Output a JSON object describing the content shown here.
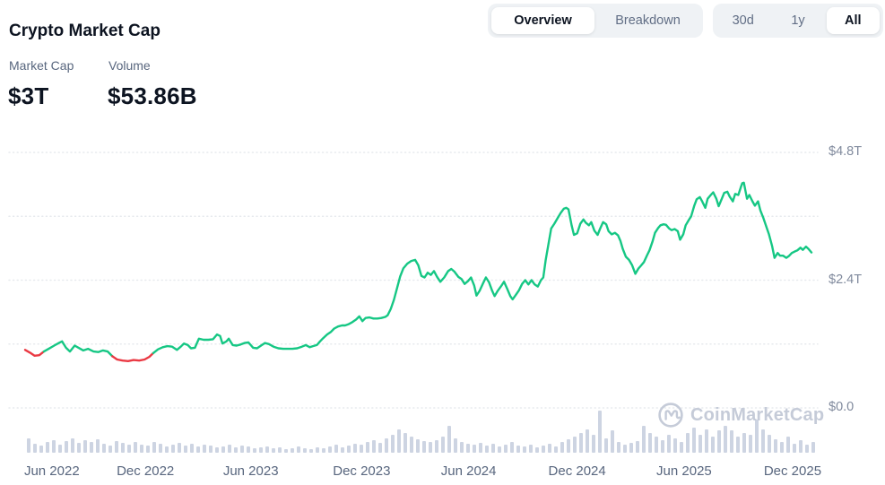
{
  "header": {
    "title": "Crypto Market Cap"
  },
  "view_toggle": {
    "options": [
      "Overview",
      "Breakdown"
    ],
    "selected": "Overview"
  },
  "range_toggle": {
    "options": [
      "30d",
      "1y",
      "All"
    ],
    "selected": "All"
  },
  "stats": [
    {
      "label": "Market Cap",
      "value": "$3T"
    },
    {
      "label": "Volume",
      "value": "$53.86B"
    }
  ],
  "watermark": {
    "icon": "coinmarketcap-logo",
    "text": "CoinMarketCap"
  },
  "colors": {
    "line_up": "#16c784",
    "line_down": "#ea3943",
    "volume_bar": "#cdd4e2",
    "grid": "#e7eaee",
    "y_label": "#808a9d",
    "x_label": "#58667e",
    "title": "#0d1421",
    "toggle_bg": "#eff2f5",
    "watermark": "#c5cbd8"
  },
  "chart_data": {
    "type": "line",
    "title": "Crypto Market Cap",
    "unit": "trillion USD",
    "ylim": [
      0,
      4.8
    ],
    "grid": "dotted-horizontal",
    "y_ticks": [
      {
        "value": 4.8,
        "label": "$4.8T"
      },
      {
        "value": 2.4,
        "label": "$2.4T"
      },
      {
        "value": 0.0,
        "label": "$0.0"
      }
    ],
    "gridline_values": [
      4.8,
      3.6,
      2.4,
      1.2,
      0.0
    ],
    "x_ticks": [
      {
        "t": 0.034,
        "label": "Jun 2022"
      },
      {
        "t": 0.153,
        "label": "Dec 2022"
      },
      {
        "t": 0.287,
        "label": "Jun 2023"
      },
      {
        "t": 0.428,
        "label": "Dec 2023"
      },
      {
        "t": 0.564,
        "label": "Jun 2024"
      },
      {
        "t": 0.702,
        "label": "Dec 2024"
      },
      {
        "t": 0.838,
        "label": "Jun 2025"
      },
      {
        "t": 0.976,
        "label": "Dec 2025"
      }
    ],
    "series": {
      "name": "Market Cap ($T)",
      "decline_segments_t": [
        [
          0.002,
          0.026
        ],
        [
          0.11,
          0.162
        ]
      ],
      "points": [
        [
          0.0,
          1.09
        ],
        [
          0.006,
          1.04
        ],
        [
          0.012,
          0.98
        ],
        [
          0.018,
          0.99
        ],
        [
          0.024,
          1.06
        ],
        [
          0.03,
          1.11
        ],
        [
          0.037,
          1.17
        ],
        [
          0.043,
          1.22
        ],
        [
          0.047,
          1.25
        ],
        [
          0.052,
          1.13
        ],
        [
          0.057,
          1.06
        ],
        [
          0.063,
          1.17
        ],
        [
          0.068,
          1.13
        ],
        [
          0.074,
          1.08
        ],
        [
          0.08,
          1.11
        ],
        [
          0.087,
          1.06
        ],
        [
          0.093,
          1.05
        ],
        [
          0.099,
          1.08
        ],
        [
          0.105,
          1.06
        ],
        [
          0.111,
          0.97
        ],
        [
          0.117,
          0.91
        ],
        [
          0.124,
          0.89
        ],
        [
          0.131,
          0.88
        ],
        [
          0.138,
          0.9
        ],
        [
          0.145,
          0.89
        ],
        [
          0.152,
          0.91
        ],
        [
          0.158,
          0.96
        ],
        [
          0.163,
          1.03
        ],
        [
          0.169,
          1.1
        ],
        [
          0.175,
          1.14
        ],
        [
          0.181,
          1.16
        ],
        [
          0.187,
          1.15
        ],
        [
          0.193,
          1.09
        ],
        [
          0.198,
          1.15
        ],
        [
          0.202,
          1.21
        ],
        [
          0.207,
          1.18
        ],
        [
          0.211,
          1.12
        ],
        [
          0.216,
          1.13
        ],
        [
          0.221,
          1.3
        ],
        [
          0.227,
          1.28
        ],
        [
          0.233,
          1.28
        ],
        [
          0.239,
          1.29
        ],
        [
          0.244,
          1.38
        ],
        [
          0.248,
          1.35
        ],
        [
          0.251,
          1.21
        ],
        [
          0.256,
          1.25
        ],
        [
          0.259,
          1.3
        ],
        [
          0.264,
          1.18
        ],
        [
          0.269,
          1.17
        ],
        [
          0.274,
          1.19
        ],
        [
          0.279,
          1.22
        ],
        [
          0.284,
          1.23
        ],
        [
          0.29,
          1.13
        ],
        [
          0.295,
          1.12
        ],
        [
          0.3,
          1.17
        ],
        [
          0.305,
          1.22
        ],
        [
          0.31,
          1.2
        ],
        [
          0.316,
          1.15
        ],
        [
          0.322,
          1.12
        ],
        [
          0.328,
          1.11
        ],
        [
          0.334,
          1.11
        ],
        [
          0.34,
          1.11
        ],
        [
          0.346,
          1.12
        ],
        [
          0.352,
          1.15
        ],
        [
          0.357,
          1.18
        ],
        [
          0.362,
          1.14
        ],
        [
          0.366,
          1.16
        ],
        [
          0.371,
          1.18
        ],
        [
          0.375,
          1.25
        ],
        [
          0.379,
          1.31
        ],
        [
          0.384,
          1.38
        ],
        [
          0.389,
          1.43
        ],
        [
          0.393,
          1.49
        ],
        [
          0.398,
          1.53
        ],
        [
          0.403,
          1.55
        ],
        [
          0.407,
          1.55
        ],
        [
          0.411,
          1.57
        ],
        [
          0.416,
          1.61
        ],
        [
          0.421,
          1.66
        ],
        [
          0.425,
          1.72
        ],
        [
          0.429,
          1.63
        ],
        [
          0.433,
          1.69
        ],
        [
          0.438,
          1.7
        ],
        [
          0.443,
          1.68
        ],
        [
          0.448,
          1.68
        ],
        [
          0.453,
          1.69
        ],
        [
          0.458,
          1.71
        ],
        [
          0.461,
          1.74
        ],
        [
          0.465,
          1.86
        ],
        [
          0.469,
          2.03
        ],
        [
          0.473,
          2.25
        ],
        [
          0.477,
          2.47
        ],
        [
          0.481,
          2.62
        ],
        [
          0.486,
          2.71
        ],
        [
          0.491,
          2.76
        ],
        [
          0.496,
          2.78
        ],
        [
          0.5,
          2.68
        ],
        [
          0.504,
          2.48
        ],
        [
          0.508,
          2.45
        ],
        [
          0.512,
          2.54
        ],
        [
          0.516,
          2.5
        ],
        [
          0.52,
          2.57
        ],
        [
          0.524,
          2.46
        ],
        [
          0.528,
          2.37
        ],
        [
          0.533,
          2.45
        ],
        [
          0.538,
          2.57
        ],
        [
          0.542,
          2.61
        ],
        [
          0.546,
          2.56
        ],
        [
          0.551,
          2.46
        ],
        [
          0.555,
          2.42
        ],
        [
          0.559,
          2.33
        ],
        [
          0.563,
          2.38
        ],
        [
          0.567,
          2.45
        ],
        [
          0.571,
          2.3
        ],
        [
          0.574,
          2.11
        ],
        [
          0.578,
          2.2
        ],
        [
          0.582,
          2.33
        ],
        [
          0.586,
          2.45
        ],
        [
          0.59,
          2.36
        ],
        [
          0.594,
          2.2
        ],
        [
          0.597,
          2.1
        ],
        [
          0.601,
          2.2
        ],
        [
          0.605,
          2.28
        ],
        [
          0.609,
          2.37
        ],
        [
          0.613,
          2.24
        ],
        [
          0.617,
          2.1
        ],
        [
          0.62,
          2.04
        ],
        [
          0.624,
          2.12
        ],
        [
          0.628,
          2.21
        ],
        [
          0.632,
          2.33
        ],
        [
          0.636,
          2.4
        ],
        [
          0.64,
          2.32
        ],
        [
          0.644,
          2.4
        ],
        [
          0.648,
          2.32
        ],
        [
          0.652,
          2.28
        ],
        [
          0.656,
          2.4
        ],
        [
          0.659,
          2.45
        ],
        [
          0.662,
          2.78
        ],
        [
          0.666,
          3.12
        ],
        [
          0.669,
          3.37
        ],
        [
          0.673,
          3.46
        ],
        [
          0.677,
          3.56
        ],
        [
          0.681,
          3.66
        ],
        [
          0.685,
          3.74
        ],
        [
          0.688,
          3.76
        ],
        [
          0.691,
          3.73
        ],
        [
          0.695,
          3.43
        ],
        [
          0.698,
          3.25
        ],
        [
          0.702,
          3.28
        ],
        [
          0.706,
          3.46
        ],
        [
          0.71,
          3.54
        ],
        [
          0.713,
          3.48
        ],
        [
          0.717,
          3.43
        ],
        [
          0.72,
          3.49
        ],
        [
          0.724,
          3.33
        ],
        [
          0.728,
          3.25
        ],
        [
          0.731,
          3.36
        ],
        [
          0.735,
          3.49
        ],
        [
          0.739,
          3.45
        ],
        [
          0.742,
          3.32
        ],
        [
          0.746,
          3.26
        ],
        [
          0.75,
          3.29
        ],
        [
          0.754,
          3.24
        ],
        [
          0.757,
          3.14
        ],
        [
          0.76,
          2.99
        ],
        [
          0.764,
          2.84
        ],
        [
          0.768,
          2.78
        ],
        [
          0.772,
          2.68
        ],
        [
          0.776,
          2.52
        ],
        [
          0.78,
          2.62
        ],
        [
          0.783,
          2.67
        ],
        [
          0.787,
          2.74
        ],
        [
          0.791,
          2.87
        ],
        [
          0.794,
          2.96
        ],
        [
          0.798,
          3.13
        ],
        [
          0.801,
          3.29
        ],
        [
          0.805,
          3.38
        ],
        [
          0.808,
          3.43
        ],
        [
          0.812,
          3.45
        ],
        [
          0.815,
          3.44
        ],
        [
          0.819,
          3.37
        ],
        [
          0.822,
          3.34
        ],
        [
          0.826,
          3.36
        ],
        [
          0.83,
          3.32
        ],
        [
          0.833,
          3.16
        ],
        [
          0.837,
          3.26
        ],
        [
          0.84,
          3.43
        ],
        [
          0.844,
          3.53
        ],
        [
          0.847,
          3.6
        ],
        [
          0.851,
          3.8
        ],
        [
          0.854,
          3.92
        ],
        [
          0.858,
          3.96
        ],
        [
          0.861,
          3.88
        ],
        [
          0.865,
          3.76
        ],
        [
          0.868,
          3.93
        ],
        [
          0.872,
          4.0
        ],
        [
          0.875,
          4.05
        ],
        [
          0.879,
          3.93
        ],
        [
          0.882,
          3.79
        ],
        [
          0.886,
          3.93
        ],
        [
          0.889,
          4.04
        ],
        [
          0.893,
          4.06
        ],
        [
          0.896,
          3.97
        ],
        [
          0.9,
          3.88
        ],
        [
          0.903,
          4.02
        ],
        [
          0.907,
          4.0
        ],
        [
          0.91,
          4.14
        ],
        [
          0.912,
          4.22
        ],
        [
          0.914,
          4.23
        ],
        [
          0.918,
          3.93
        ],
        [
          0.921,
          4.0
        ],
        [
          0.925,
          3.88
        ],
        [
          0.928,
          3.8
        ],
        [
          0.932,
          3.88
        ],
        [
          0.935,
          3.71
        ],
        [
          0.939,
          3.56
        ],
        [
          0.942,
          3.43
        ],
        [
          0.946,
          3.26
        ],
        [
          0.95,
          3.04
        ],
        [
          0.953,
          2.82
        ],
        [
          0.957,
          2.91
        ],
        [
          0.96,
          2.86
        ],
        [
          0.964,
          2.86
        ],
        [
          0.968,
          2.82
        ],
        [
          0.971,
          2.85
        ],
        [
          0.975,
          2.91
        ],
        [
          0.979,
          2.94
        ],
        [
          0.982,
          2.96
        ],
        [
          0.986,
          3.01
        ],
        [
          0.989,
          2.97
        ],
        [
          0.993,
          3.03
        ],
        [
          0.996,
          2.99
        ],
        [
          1.0,
          2.92
        ]
      ]
    },
    "volume_profile_relative": [
      16,
      10,
      8,
      12,
      14,
      9,
      13,
      16,
      11,
      14,
      12,
      15,
      10,
      8,
      13,
      11,
      9,
      12,
      9,
      8,
      12,
      10,
      7,
      9,
      11,
      8,
      10,
      7,
      9,
      8,
      6,
      7,
      9,
      6,
      8,
      7,
      5,
      6,
      7,
      5,
      6,
      4,
      5,
      7,
      5,
      4,
      6,
      5,
      7,
      9,
      6,
      8,
      10,
      9,
      12,
      14,
      11,
      16,
      20,
      26,
      22,
      18,
      15,
      13,
      12,
      14,
      18,
      30,
      16,
      12,
      10,
      9,
      11,
      8,
      10,
      7,
      9,
      12,
      8,
      7,
      9,
      6,
      8,
      10,
      7,
      12,
      15,
      18,
      22,
      26,
      20,
      47,
      16,
      25,
      12,
      9,
      11,
      13,
      30,
      22,
      18,
      14,
      20,
      16,
      12,
      22,
      28,
      20,
      26,
      18,
      25,
      30,
      25,
      18,
      22,
      20,
      37,
      26,
      20,
      15,
      12,
      18,
      10,
      14,
      9,
      12
    ]
  }
}
